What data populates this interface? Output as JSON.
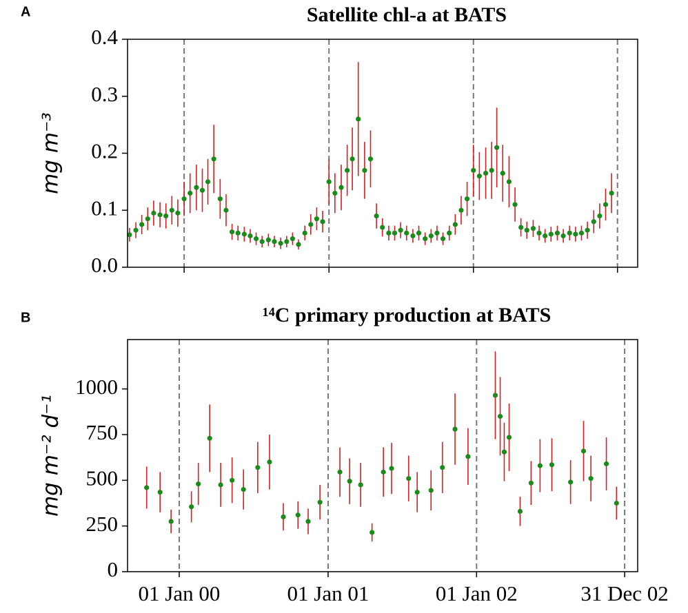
{
  "chart_data": [
    {
      "type": "errorbar",
      "panel": "A",
      "title": "Satellite chl-a at BATS",
      "ylabel": "mg m⁻³",
      "x": [
        "1999-08-16",
        "1999-09-01",
        "1999-09-16",
        "1999-10-01",
        "1999-10-16",
        "1999-11-01",
        "1999-11-16",
        "1999-12-01",
        "1999-12-16",
        "2000-01-01",
        "2000-01-16",
        "2000-02-01",
        "2000-02-16",
        "2000-03-01",
        "2000-03-16",
        "2000-04-01",
        "2000-04-16",
        "2000-05-01",
        "2000-05-16",
        "2000-06-01",
        "2000-06-16",
        "2000-07-01",
        "2000-07-16",
        "2000-08-01",
        "2000-08-16",
        "2000-09-01",
        "2000-09-16",
        "2000-10-01",
        "2000-10-16",
        "2000-11-01",
        "2000-11-16",
        "2000-12-01",
        "2000-12-16",
        "2001-01-01",
        "2001-01-16",
        "2001-02-01",
        "2001-02-16",
        "2001-03-01",
        "2001-03-16",
        "2001-04-01",
        "2001-04-16",
        "2001-05-01",
        "2001-05-16",
        "2001-06-01",
        "2001-06-16",
        "2001-07-01",
        "2001-07-16",
        "2001-08-01",
        "2001-08-16",
        "2001-09-01",
        "2001-09-16",
        "2001-10-01",
        "2001-10-16",
        "2001-11-01",
        "2001-11-16",
        "2001-12-01",
        "2001-12-16",
        "2002-01-01",
        "2002-01-16",
        "2002-02-01",
        "2002-02-16",
        "2002-03-01",
        "2002-03-16",
        "2002-04-01",
        "2002-04-16",
        "2002-05-01",
        "2002-05-16",
        "2002-06-01",
        "2002-06-16",
        "2002-07-01",
        "2002-07-16",
        "2002-08-01",
        "2002-08-16",
        "2002-09-01",
        "2002-09-16",
        "2002-10-01",
        "2002-10-16",
        "2002-11-01",
        "2002-11-16",
        "2002-12-01",
        "2002-12-16"
      ],
      "values": [
        0.057,
        0.065,
        0.075,
        0.085,
        0.095,
        0.092,
        0.09,
        0.1,
        0.095,
        0.12,
        0.13,
        0.14,
        0.135,
        0.15,
        0.19,
        0.12,
        0.1,
        0.062,
        0.06,
        0.058,
        0.055,
        0.05,
        0.045,
        0.048,
        0.045,
        0.042,
        0.045,
        0.05,
        0.04,
        0.06,
        0.075,
        0.085,
        0.08,
        0.15,
        0.13,
        0.14,
        0.17,
        0.19,
        0.26,
        0.17,
        0.19,
        0.09,
        0.07,
        0.06,
        0.06,
        0.065,
        0.06,
        0.055,
        0.06,
        0.05,
        0.055,
        0.06,
        0.05,
        0.06,
        0.075,
        0.1,
        0.12,
        0.17,
        0.16,
        0.165,
        0.17,
        0.21,
        0.165,
        0.15,
        0.11,
        0.07,
        0.065,
        0.068,
        0.06,
        0.055,
        0.058,
        0.06,
        0.055,
        0.06,
        0.058,
        0.06,
        0.065,
        0.08,
        0.09,
        0.11,
        0.13
      ],
      "errors": [
        0.012,
        0.014,
        0.017,
        0.02,
        0.022,
        0.022,
        0.022,
        0.025,
        0.024,
        0.03,
        0.035,
        0.04,
        0.038,
        0.04,
        0.06,
        0.035,
        0.028,
        0.014,
        0.013,
        0.013,
        0.012,
        0.011,
        0.01,
        0.011,
        0.01,
        0.01,
        0.01,
        0.011,
        0.009,
        0.013,
        0.018,
        0.02,
        0.019,
        0.04,
        0.035,
        0.04,
        0.045,
        0.055,
        0.1,
        0.05,
        0.05,
        0.022,
        0.016,
        0.013,
        0.013,
        0.014,
        0.013,
        0.012,
        0.013,
        0.011,
        0.012,
        0.013,
        0.011,
        0.013,
        0.018,
        0.025,
        0.03,
        0.045,
        0.042,
        0.045,
        0.05,
        0.07,
        0.05,
        0.045,
        0.03,
        0.016,
        0.015,
        0.015,
        0.013,
        0.012,
        0.013,
        0.013,
        0.012,
        0.013,
        0.013,
        0.013,
        0.015,
        0.02,
        0.022,
        0.028,
        0.035
      ],
      "color": "#1a8a1a",
      "error_color": "#d81e1e",
      "xlim": [
        "1999-08-11",
        "2003-02-20"
      ],
      "xticks": [
        "2000-01-01",
        "2001-01-01",
        "2002-01-01",
        "2002-12-31"
      ],
      "ylim": [
        0,
        0.4
      ],
      "yticks": [
        {
          "value": 0,
          "label": "0.0"
        },
        0.1,
        0.2,
        0.3,
        0.4
      ],
      "grid": "x-dashed"
    },
    {
      "type": "errorbar",
      "panel": "B",
      "title": "¹⁴C primary production at BATS",
      "ylabel": "mg m⁻² d⁻¹",
      "x": [
        "1999-10-13",
        "1999-11-15",
        "1999-12-12",
        "2000-01-31",
        "2000-02-17",
        "2000-03-16",
        "2000-04-12",
        "2000-05-10",
        "2000-06-07",
        "2000-07-12",
        "2000-08-10",
        "2000-09-13",
        "2000-10-19",
        "2000-11-13",
        "2000-12-12",
        "2001-01-30",
        "2001-02-23",
        "2001-03-22",
        "2001-04-19",
        "2001-05-17",
        "2001-06-06",
        "2001-07-18",
        "2001-08-08",
        "2001-09-11",
        "2001-10-09",
        "2001-11-09",
        "2001-12-11",
        "2002-02-16",
        "2002-02-28",
        "2002-03-10",
        "2002-03-22",
        "2002-04-18",
        "2002-05-15",
        "2002-06-06",
        "2002-07-05",
        "2002-08-20",
        "2002-09-21",
        "2002-10-09",
        "2002-11-16",
        "2002-12-11"
      ],
      "values": [
        460,
        435,
        275,
        355,
        480,
        730,
        475,
        500,
        450,
        570,
        600,
        300,
        310,
        275,
        380,
        545,
        495,
        475,
        215,
        545,
        565,
        510,
        435,
        445,
        570,
        780,
        630,
        965,
        850,
        655,
        735,
        330,
        485,
        580,
        585,
        490,
        660,
        510,
        590,
        375
      ],
      "errors": [
        115,
        110,
        65,
        85,
        115,
        185,
        120,
        125,
        110,
        140,
        150,
        75,
        75,
        70,
        95,
        135,
        125,
        120,
        50,
        135,
        140,
        125,
        110,
        110,
        140,
        195,
        155,
        240,
        215,
        160,
        185,
        80,
        120,
        145,
        145,
        120,
        165,
        125,
        145,
        90
      ],
      "color": "#1a8a1a",
      "error_color": "#d81e1e",
      "xlim": [
        "1999-08-27",
        "2003-02-01"
      ],
      "xticks": [
        {
          "value": "2000-01-01",
          "label": "01 Jan 00"
        },
        {
          "value": "2001-01-01",
          "label": "01 Jan 01"
        },
        {
          "value": "2002-01-01",
          "label": "01 Jan 02"
        },
        {
          "value": "2002-12-31",
          "label": "31 Dec 02"
        }
      ],
      "ylim": [
        0,
        1270
      ],
      "yticks": [
        0,
        250,
        500,
        750,
        1000
      ],
      "grid": "x-dashed"
    }
  ]
}
